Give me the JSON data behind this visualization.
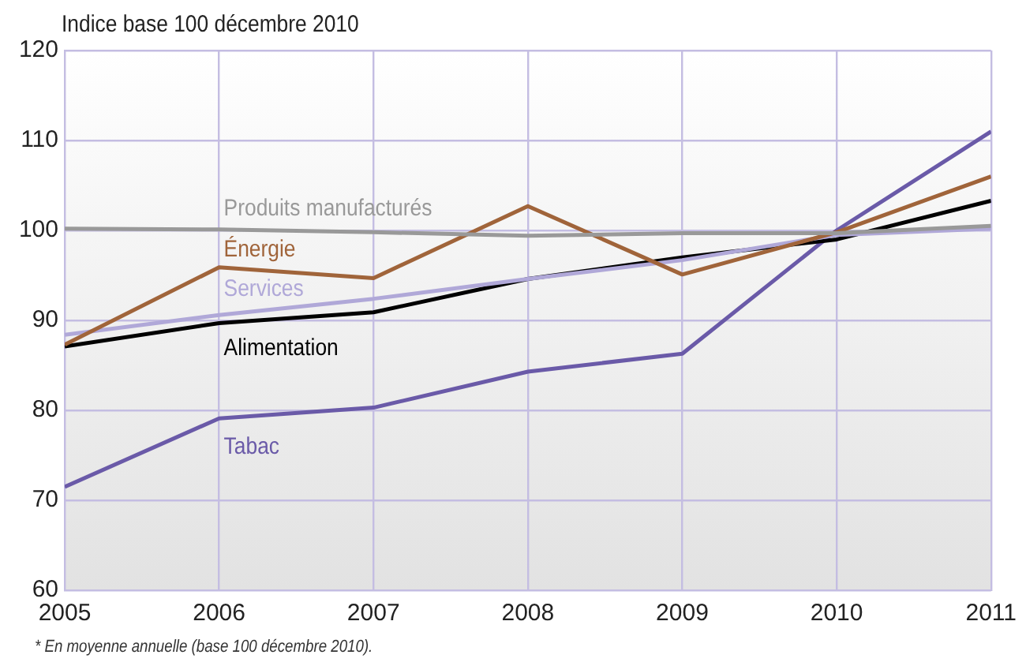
{
  "chart_data": {
    "type": "line",
    "ylabel": "Indice base 100 décembre 2010",
    "annotations": [
      "* En moyenne annuelle (base 100 décembre 2010)."
    ],
    "x": [
      2005,
      2006,
      2007,
      2008,
      2009,
      2010,
      2011
    ],
    "xlim": [
      2005,
      2011
    ],
    "xticks": [
      2005,
      2006,
      2007,
      2008,
      2009,
      2010,
      2011
    ],
    "ylim": [
      60,
      120
    ],
    "yticks": [
      60,
      70,
      80,
      90,
      100,
      110,
      120
    ],
    "grid": true,
    "legend": false,
    "marker": "none",
    "line_style": "solid",
    "series": [
      {
        "name": "Produits manufacturés",
        "color": "#999999",
        "values": [
          100.2,
          100.1,
          99.8,
          99.4,
          99.7,
          99.7,
          100.5
        ]
      },
      {
        "name": "Énergie",
        "color": "#a0643a",
        "values": [
          87.3,
          95.9,
          94.7,
          102.7,
          95.1,
          99.8,
          106
        ]
      },
      {
        "name": "Services",
        "color": "#b0a8d8",
        "values": [
          88.4,
          90.6,
          92.4,
          94.6,
          96.7,
          99.5,
          100.2
        ]
      },
      {
        "name": "Alimentation",
        "color": "#000000",
        "values": [
          87.1,
          89.7,
          90.9,
          94.6,
          97.0,
          99.0,
          103.3
        ]
      },
      {
        "name": "Tabac",
        "color": "#6a5aa8",
        "values": [
          71.5,
          79.1,
          80.3,
          84.3,
          86.3,
          100,
          111
        ]
      }
    ]
  }
}
